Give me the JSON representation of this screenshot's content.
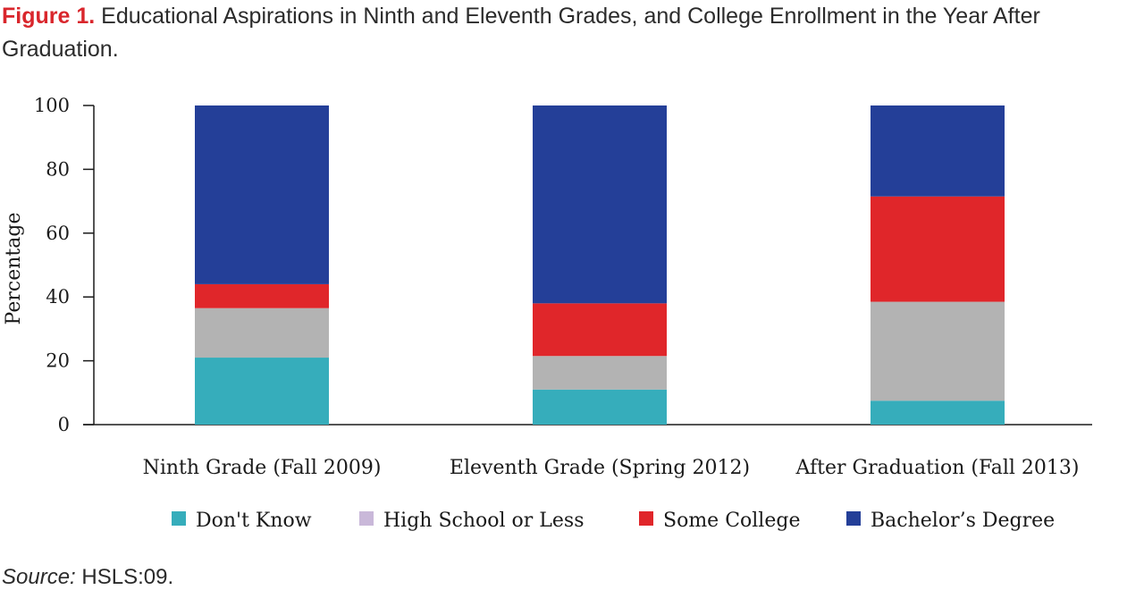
{
  "figure": {
    "label": "Figure 1.",
    "title": "Educational Aspirations in Ninth and Eleventh Grades, and College Enrollment in the Year After Graduation.",
    "source_label": "Source:",
    "source_text": "HSLS:09."
  },
  "colors": {
    "dont_know": "#36adbb",
    "high_school": "#b3b3b3",
    "high_school_legend": "#c9b8d9",
    "some_college": "#e0262a",
    "bachelors": "#243f98",
    "axis": "#1a1a1a"
  },
  "chart_data": {
    "type": "bar",
    "stacked": true,
    "title": "",
    "xlabel": "",
    "ylabel": "Percentage",
    "ylim": [
      0,
      100
    ],
    "yticks": [
      0,
      20,
      40,
      60,
      80,
      100
    ],
    "categories": [
      "Ninth Grade (Fall 2009)",
      "Eleventh Grade (Spring 2012)",
      "After Graduation (Fall 2013)"
    ],
    "series": [
      {
        "name": "Don't Know",
        "color_key": "dont_know",
        "values": [
          21,
          11,
          7.5
        ]
      },
      {
        "name": "High School or Less",
        "color_key": "high_school",
        "values": [
          15.5,
          10.5,
          31
        ]
      },
      {
        "name": "Some College",
        "color_key": "some_college",
        "values": [
          7.5,
          16.5,
          33
        ]
      },
      {
        "name": "Bachelor’s Degree",
        "color_key": "bachelors",
        "values": [
          56,
          62,
          28.5
        ]
      }
    ],
    "legend_position": "bottom",
    "grid": false
  }
}
